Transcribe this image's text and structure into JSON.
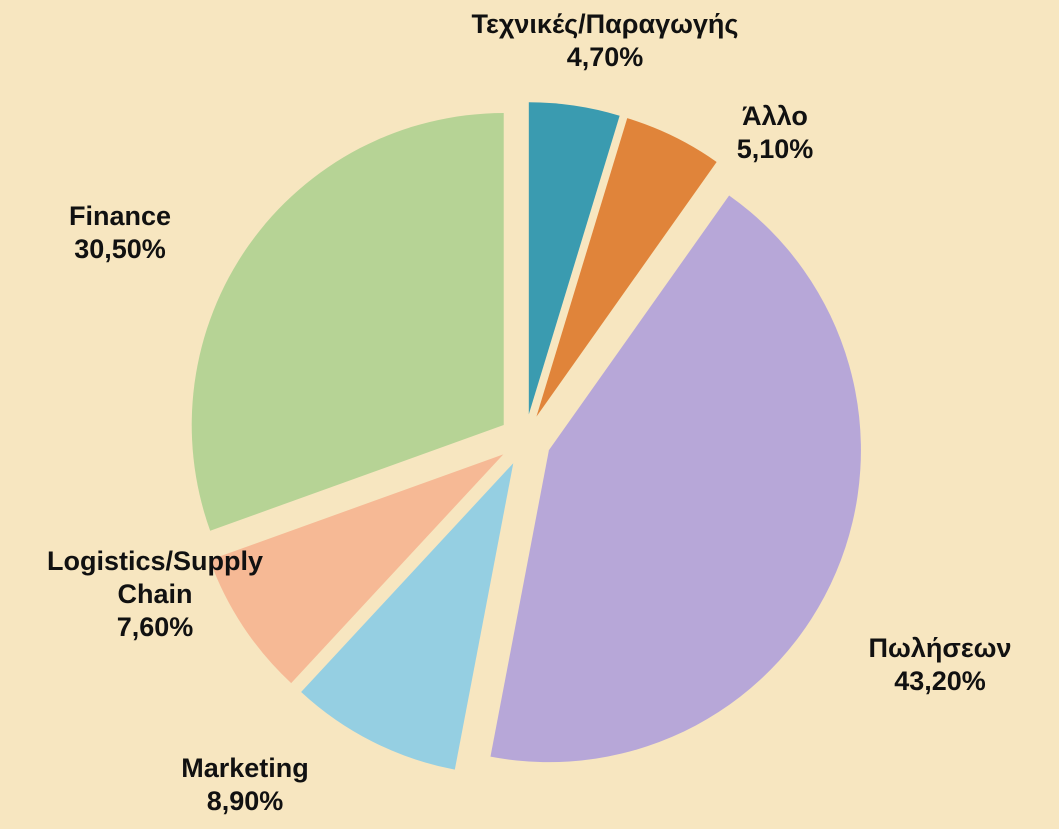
{
  "chart_data": {
    "type": "pie",
    "categories": [
      "Τεχνικές/Παραγωγής",
      "Άλλο",
      "Πωλήσεων",
      "Marketing",
      "Logistics/Supply Chain",
      "Finance"
    ],
    "values": [
      4.7,
      5.1,
      43.2,
      8.9,
      7.6,
      30.5
    ],
    "value_labels": [
      "4,70%",
      "5,10%",
      "43,20%",
      "8,90%",
      "7,60%",
      "30,50%"
    ],
    "colors": [
      "#3a9bb0",
      "#e0843a",
      "#b7a7d8",
      "#95cfe2",
      "#f6b995",
      "#b6d395"
    ]
  }
}
